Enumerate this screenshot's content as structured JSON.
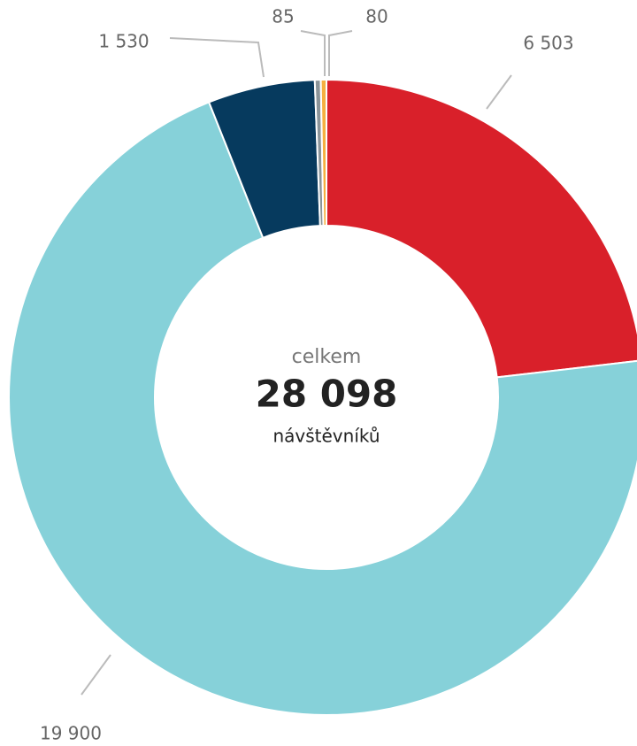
{
  "chart_data": {
    "type": "donut",
    "categories": [
      null,
      null,
      null,
      null,
      null
    ],
    "values": [
      6503,
      19900,
      1530,
      85,
      80
    ],
    "value_labels": [
      "6 503",
      "19 900",
      "1 530",
      "85",
      "80"
    ],
    "colors": [
      "#d9202a",
      "#86d1d9",
      "#063a5e",
      "#8a9499",
      "#f5b041"
    ],
    "center": {
      "label": "celkem",
      "value_label": "28 098",
      "unit": "návštěvníků"
    }
  }
}
